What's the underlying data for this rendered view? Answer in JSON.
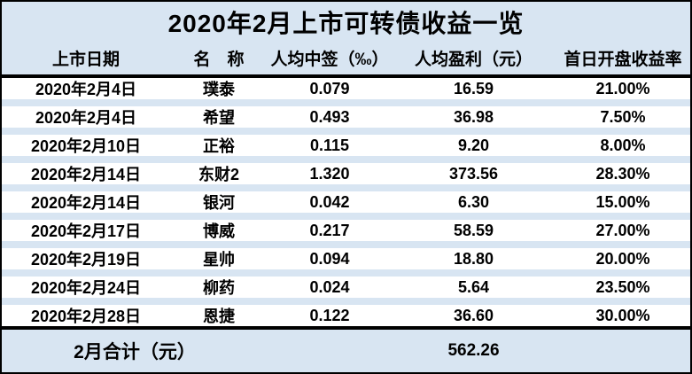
{
  "chart_data": {
    "type": "table",
    "title": "2020年2月上市可转债收益一览",
    "columns": {
      "date": "上市日期",
      "name": "名　称",
      "rate": "人均中签（‰）",
      "profit": "人均盈利（元）",
      "yield": "首日开盘收益率"
    },
    "rows": [
      {
        "date": "2020年2月4日",
        "name": "璞泰",
        "rate": "0.079",
        "profit": "16.59",
        "yield": "21.00%"
      },
      {
        "date": "2020年2月4日",
        "name": "希望",
        "rate": "0.493",
        "profit": "36.98",
        "yield": "7.50%"
      },
      {
        "date": "2020年2月10日",
        "name": "正裕",
        "rate": "0.115",
        "profit": "9.20",
        "yield": "8.00%"
      },
      {
        "date": "2020年2月14日",
        "name": "东财2",
        "rate": "1.320",
        "profit": "373.56",
        "yield": "28.30%"
      },
      {
        "date": "2020年2月14日",
        "name": "银河",
        "rate": "0.042",
        "profit": "6.30",
        "yield": "15.00%"
      },
      {
        "date": "2020年2月17日",
        "name": "博威",
        "rate": "0.217",
        "profit": "58.59",
        "yield": "27.00%"
      },
      {
        "date": "2020年2月19日",
        "name": "星帅",
        "rate": "0.094",
        "profit": "18.80",
        "yield": "20.00%"
      },
      {
        "date": "2020年2月24日",
        "name": "柳药",
        "rate": "0.024",
        "profit": "5.64",
        "yield": "23.50%"
      },
      {
        "date": "2020年2月28日",
        "name": "恩捷",
        "rate": "0.122",
        "profit": "36.60",
        "yield": "30.00%"
      }
    ],
    "footer": {
      "label": "2月合计（元）",
      "total": "562.26"
    }
  },
  "colors": {
    "background": "#d8e5f2",
    "row_background": "#ffffff",
    "text": "#000000",
    "divider": "#000000",
    "border": "#000000"
  }
}
